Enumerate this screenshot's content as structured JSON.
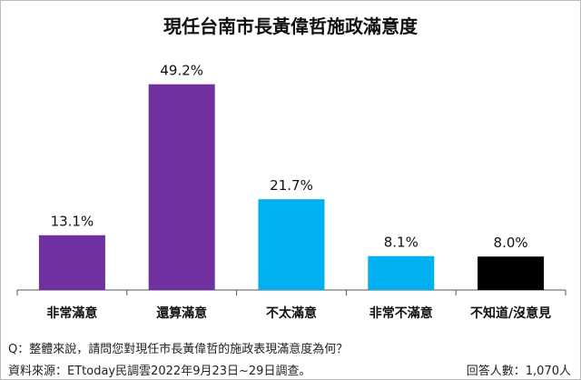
{
  "chart_data": {
    "type": "bar",
    "title": "現任台南市長黃偉哲施政滿意度",
    "categories": [
      "非常滿意",
      "還算滿意",
      "不太滿意",
      "非常不滿意",
      "不知道/沒意見"
    ],
    "values": [
      13.1,
      49.2,
      21.7,
      8.1,
      8.0
    ],
    "labels": [
      "13.1%",
      "49.2%",
      "21.7%",
      "8.1%",
      "8.0%"
    ],
    "colors": [
      "#7030a0",
      "#7030a0",
      "#00b0f0",
      "#00b0f0",
      "#000000"
    ],
    "xlabel": "",
    "ylabel": "",
    "ylim": [
      0,
      55
    ],
    "grid": false
  },
  "footer": {
    "question": "Q：整體來說，請問您對現任市長黃偉哲的施政表現滿意度為何？",
    "source": "資料來源：ETtoday民調雲2022年9月23日~29日調查。",
    "respondents": "回答人數：1,070人"
  }
}
